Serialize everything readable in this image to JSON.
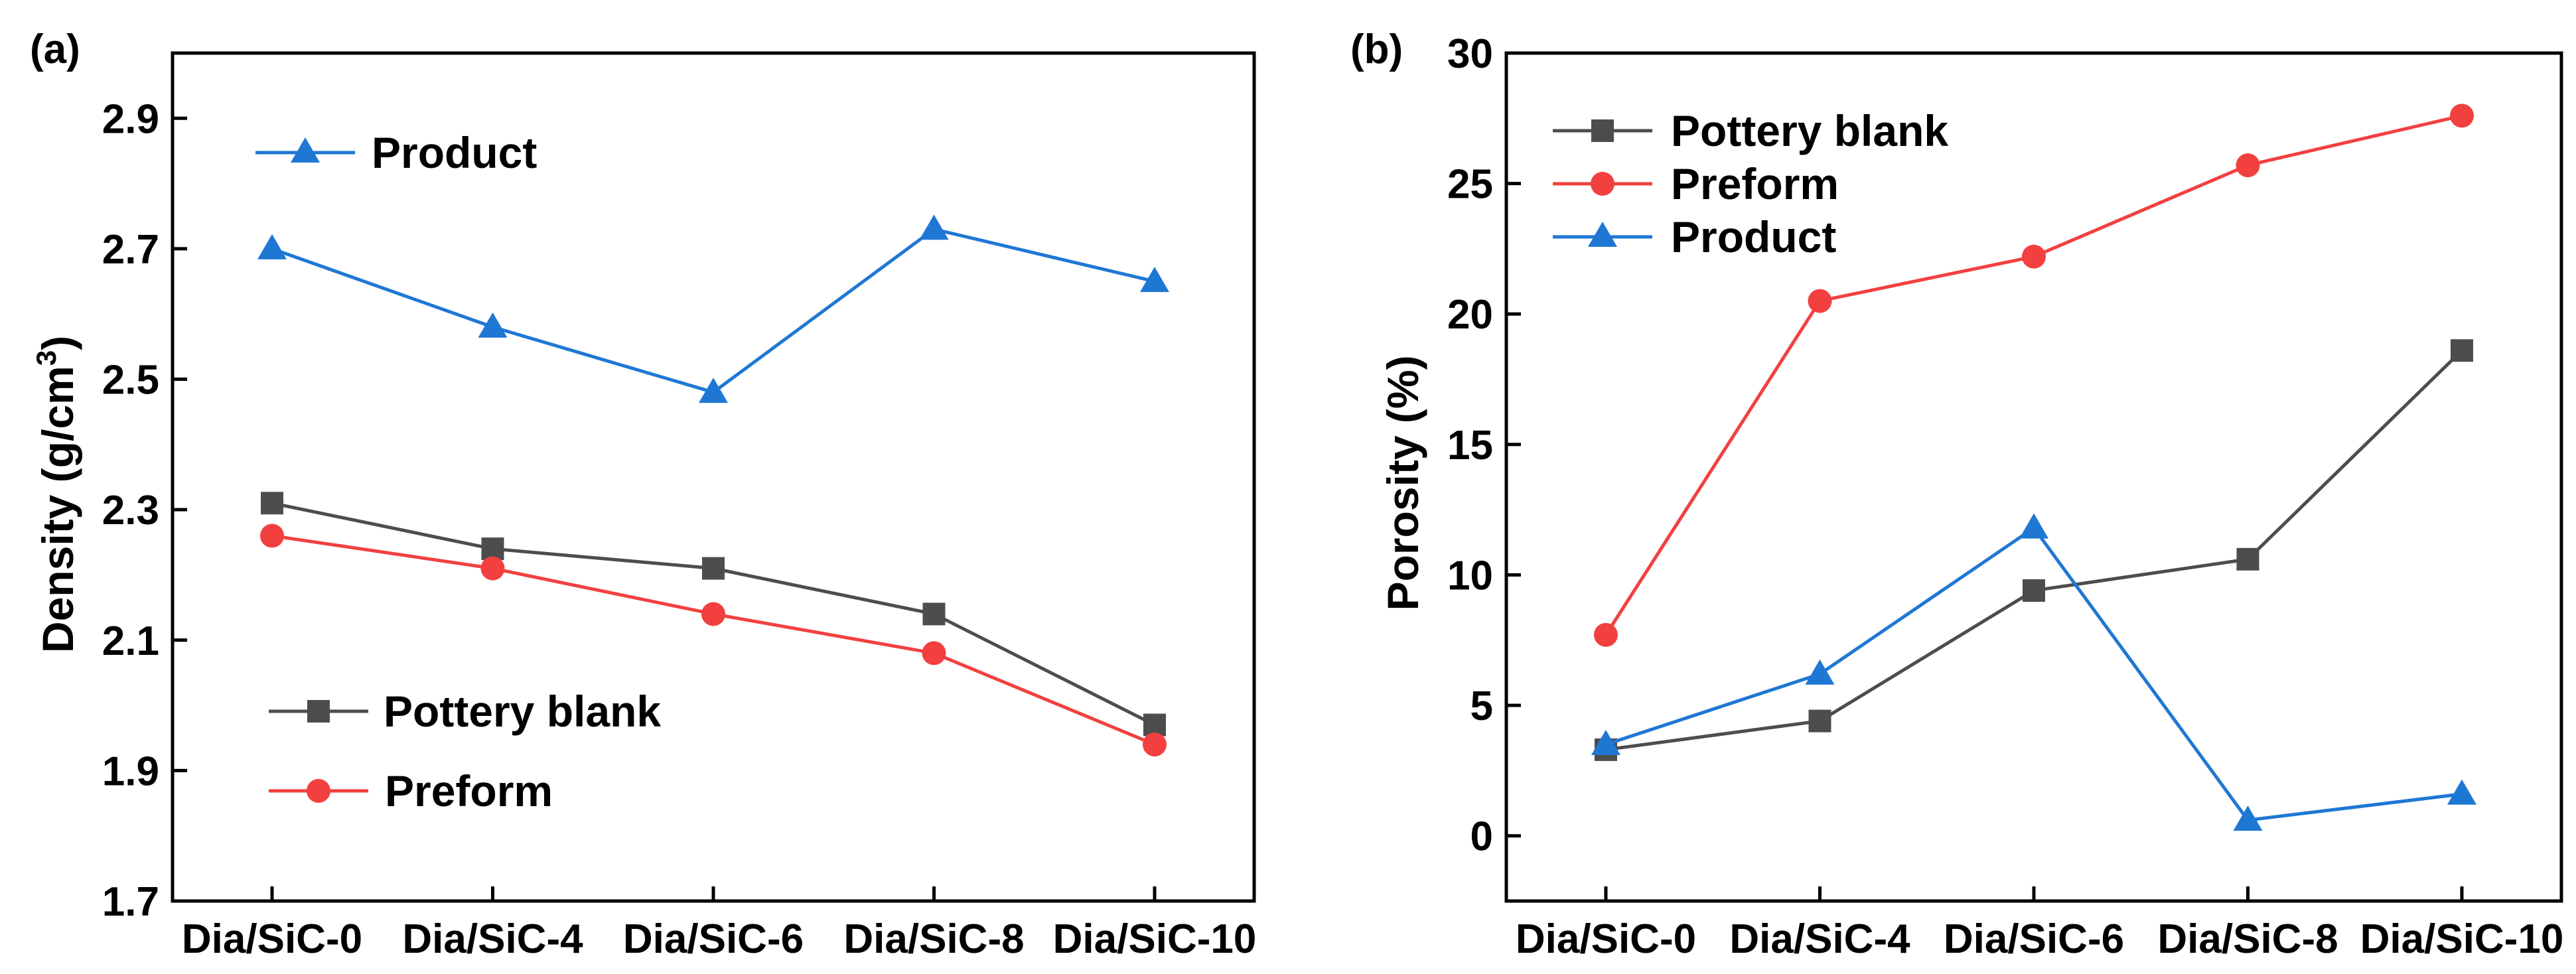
{
  "chart_data": [
    {
      "panel_label": "(a)",
      "type": "line",
      "categories": [
        "Dia/SiC-0",
        "Dia/SiC-4",
        "Dia/SiC-6",
        "Dia/SiC-8",
        "Dia/SiC-10"
      ],
      "ylabel": "Density (g/cm",
      "ylabel_sup": "3",
      "ylabel_close": ")",
      "xlabel": "",
      "ylim": [
        1.7,
        3.0
      ],
      "yticks": [
        "1.7",
        "1.9",
        "2.1",
        "2.3",
        "2.5",
        "2.7",
        "2.9"
      ],
      "grid": false,
      "series": [
        {
          "name": "Product",
          "color": "#1f77d4",
          "marker": "triangle",
          "values": [
            2.7,
            2.58,
            2.48,
            2.73,
            2.65
          ]
        },
        {
          "name": "Pottery blank",
          "color": "#4d4d4d",
          "marker": "square",
          "values": [
            2.31,
            2.24,
            2.21,
            2.14,
            1.97
          ]
        },
        {
          "name": "Preform",
          "color": "#f24040",
          "marker": "circle",
          "values": [
            2.26,
            2.21,
            2.14,
            2.08,
            1.94
          ]
        }
      ]
    },
    {
      "panel_label": "(b)",
      "type": "line",
      "categories": [
        "Dia/SiC-0",
        "Dia/SiC-4",
        "Dia/SiC-6",
        "Dia/SiC-8",
        "Dia/SiC-10"
      ],
      "ylabel": "Porosity (%)",
      "xlabel": "",
      "ylim": [
        -2.5,
        30
      ],
      "yticks": [
        "0",
        "5",
        "10",
        "15",
        "20",
        "25",
        "30"
      ],
      "grid": false,
      "series": [
        {
          "name": "Pottery blank",
          "color": "#4d4d4d",
          "marker": "square",
          "values": [
            3.3,
            4.4,
            9.4,
            10.6,
            18.6
          ]
        },
        {
          "name": "Preform",
          "color": "#f24040",
          "marker": "circle",
          "values": [
            7.7,
            20.5,
            22.2,
            25.7,
            27.6
          ]
        },
        {
          "name": "Product",
          "color": "#1f77d4",
          "marker": "triangle",
          "values": [
            3.5,
            6.2,
            11.8,
            0.6,
            1.6
          ]
        }
      ]
    }
  ]
}
